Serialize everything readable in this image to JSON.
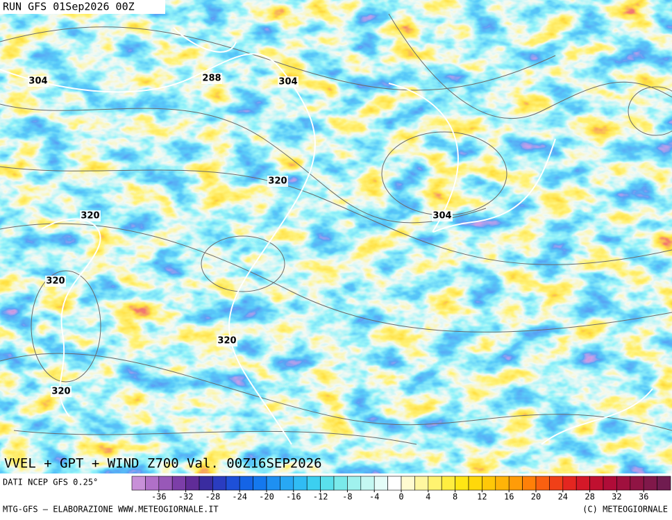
{
  "header": {
    "run": "RUN GFS 01Sep2026 00Z"
  },
  "map": {
    "contour_labels": [
      "304",
      "288",
      "304",
      "320",
      "320",
      "304",
      "320",
      "320",
      "320"
    ],
    "title": "VVEL + GPT + WIND Z700 Val. 00Z16SEP2026"
  },
  "footer": {
    "source": "DATI NCEP GFS 0.25°",
    "credit": "MTG-GFS — ELABORAZIONE WWW.METEOGIORNALE.IT",
    "copyright": "(C) METEOGIORNALE"
  },
  "colorbar": {
    "range": [
      -40,
      40
    ],
    "ticks": [
      -36,
      -32,
      -28,
      -24,
      -20,
      -16,
      -12,
      -8,
      -4,
      0,
      4,
      8,
      12,
      16,
      20,
      24,
      28,
      32,
      36
    ],
    "colors": [
      "#c890d8",
      "#b070c8",
      "#9858b8",
      "#7c3ea8",
      "#602c98",
      "#3a2ca0",
      "#2a3cc0",
      "#1e50d8",
      "#1464e6",
      "#1478ee",
      "#1e90f2",
      "#28a8f4",
      "#30bcf4",
      "#3ccff0",
      "#5ae0ec",
      "#7aeaea",
      "#a0f2ee",
      "#c4f8f2",
      "#e4fcf8",
      "#ffffff",
      "#fffbd0",
      "#fff7a0",
      "#fff370",
      "#ffee40",
      "#ffe614",
      "#ffd80a",
      "#ffc808",
      "#ffb408",
      "#ff9c08",
      "#ff8008",
      "#fa6010",
      "#f04018",
      "#e42620",
      "#d41828",
      "#c01030",
      "#b00c38",
      "#a0103e",
      "#901444",
      "#80184a",
      "#701c50"
    ]
  }
}
